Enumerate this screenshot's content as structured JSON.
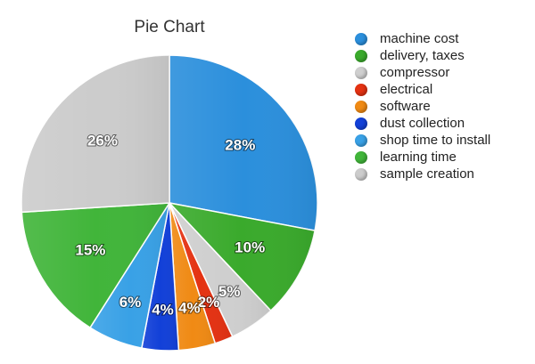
{
  "chart_data": {
    "type": "pie",
    "title": "Pie Chart",
    "slices": [
      {
        "label": "machine cost",
        "value": 28,
        "value_label": "28%",
        "color": "#2b8fdc"
      },
      {
        "label": "delivery, taxes",
        "value": 10,
        "value_label": "10%",
        "color": "#3aaa2c"
      },
      {
        "label": "compressor",
        "value": 5,
        "value_label": "5%",
        "color": "#cfcfcf"
      },
      {
        "label": "electrical",
        "value": 2,
        "value_label": "2%",
        "color": "#e43212"
      },
      {
        "label": "software",
        "value": 4,
        "value_label": "4%",
        "color": "#f08a14"
      },
      {
        "label": "dust collection",
        "value": 4,
        "value_label": "4%",
        "color": "#1240d8"
      },
      {
        "label": "shop time to install",
        "value": 6,
        "value_label": "6%",
        "color": "#39a1e6"
      },
      {
        "label": "learning time",
        "value": 15,
        "value_label": "15%",
        "color": "#41b53a"
      },
      {
        "label": "sample creation",
        "value": 26,
        "value_label": "26%",
        "color": "#cccccc"
      }
    ],
    "start_angle_deg": 0,
    "direction": "clockwise",
    "legend_position": "right"
  }
}
